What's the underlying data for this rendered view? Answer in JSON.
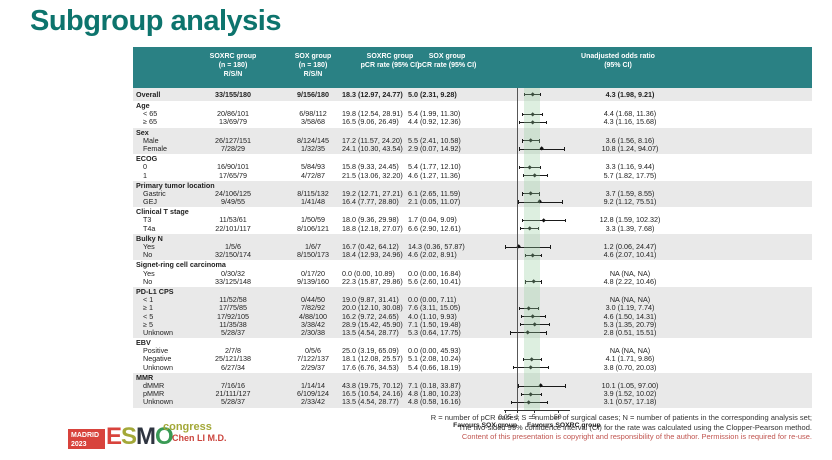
{
  "title": "Subgroup analysis",
  "table": {
    "columns": {
      "soxrc_rsn": [
        "SOXRC group",
        "(n = 180)",
        "R/S/N"
      ],
      "sox_rsn": [
        "SOX group",
        "(n = 180)",
        "R/S/N"
      ],
      "soxrc_pcr": [
        "SOXRC group",
        "pCR rate (95% CI)"
      ],
      "sox_pcr": [
        "SOX group",
        "pCR rate (95% CI)"
      ],
      "odds_ratio": [
        "Unadjusted odds ratio",
        "(95% CI)"
      ]
    }
  },
  "chart_data": {
    "type": "forest",
    "x_axis": {
      "scale": "log",
      "ticks": [
        0.05,
        1,
        5,
        50
      ],
      "tick_labels": [
        "0.05",
        "1",
        "5",
        "50"
      ],
      "ref_line": 1,
      "shaded_band": [
        1.98,
        9.21
      ],
      "favours_left": "Favours SOX group",
      "favours_right": "Favours SOXRC group"
    },
    "sections": [
      {
        "header": null,
        "shaded": true,
        "rows": [
          {
            "label": "Overall",
            "bold": true,
            "soxrc_rsn": "33/155/180",
            "sox_rsn": "9/156/180",
            "soxrc_pcr": "18.3 (12.97, 24.77)",
            "sox_pcr": "5.0 (2.31, 9.28)",
            "or_text": "4.3 (1.98, 9.21)",
            "or": 4.3,
            "lo": 1.98,
            "hi": 9.21
          }
        ]
      },
      {
        "header": "Age",
        "shaded": false,
        "rows": [
          {
            "label": "< 65",
            "soxrc_rsn": "20/86/101",
            "sox_rsn": "6/98/112",
            "soxrc_pcr": "19.8 (12.54, 28.91)",
            "sox_pcr": "5.4 (1.99, 11.30)",
            "or_text": "4.4 (1.68, 11.36)",
            "or": 4.4,
            "lo": 1.68,
            "hi": 11.36
          },
          {
            "label": "≥ 65",
            "soxrc_rsn": "13/69/79",
            "sox_rsn": "3/58/68",
            "soxrc_pcr": "16.5 (9.06, 26.49)",
            "sox_pcr": "4.4 (0.92, 12.36)",
            "or_text": "4.3 (1.16, 15.68)",
            "or": 4.3,
            "lo": 1.16,
            "hi": 15.68
          }
        ]
      },
      {
        "header": "Sex",
        "shaded": true,
        "rows": [
          {
            "label": "Male",
            "soxrc_rsn": "26/127/151",
            "sox_rsn": "8/124/145",
            "soxrc_pcr": "17.2 (11.57, 24.20)",
            "sox_pcr": "5.5 (2.41, 10.58)",
            "or_text": "3.6 (1.56, 8.16)",
            "or": 3.6,
            "lo": 1.56,
            "hi": 8.16
          },
          {
            "label": "Female",
            "soxrc_rsn": "7/28/29",
            "sox_rsn": "1/32/35",
            "soxrc_pcr": "24.1 (10.30, 43.54)",
            "sox_pcr": "2.9 (0.07, 14.92)",
            "or_text": "10.8 (1.24, 94.07)",
            "or": 10.8,
            "lo": 1.24,
            "hi": 94.07
          }
        ]
      },
      {
        "header": "ECOG",
        "shaded": false,
        "rows": [
          {
            "label": "0",
            "soxrc_rsn": "16/90/101",
            "sox_rsn": "5/84/93",
            "soxrc_pcr": "15.8 (9.33, 24.45)",
            "sox_pcr": "5.4 (1.77, 12.10)",
            "or_text": "3.3 (1.16, 9.44)",
            "or": 3.3,
            "lo": 1.16,
            "hi": 9.44
          },
          {
            "label": "1",
            "soxrc_rsn": "17/65/79",
            "sox_rsn": "4/72/87",
            "soxrc_pcr": "21.5 (13.06, 32.20)",
            "sox_pcr": "4.6 (1.27, 11.36)",
            "or_text": "5.7 (1.82, 17.75)",
            "or": 5.7,
            "lo": 1.82,
            "hi": 17.75
          }
        ]
      },
      {
        "header": "Primary tumor location",
        "shaded": true,
        "rows": [
          {
            "label": "Gastric",
            "soxrc_rsn": "24/106/125",
            "sox_rsn": "8/115/132",
            "soxrc_pcr": "19.2 (12.71, 27.21)",
            "sox_pcr": "6.1 (2.65, 11.59)",
            "or_text": "3.7 (1.59, 8.55)",
            "or": 3.7,
            "lo": 1.59,
            "hi": 8.55
          },
          {
            "label": "GEJ",
            "soxrc_rsn": "9/49/55",
            "sox_rsn": "1/41/48",
            "soxrc_pcr": "16.4 (7.77, 28.80)",
            "sox_pcr": "2.1 (0.05, 11.07)",
            "or_text": "9.2 (1.12, 75.51)",
            "or": 9.2,
            "lo": 1.12,
            "hi": 75.51
          }
        ]
      },
      {
        "header": "Clinical T stage",
        "shaded": false,
        "rows": [
          {
            "label": "T3",
            "soxrc_rsn": "11/53/61",
            "sox_rsn": "1/50/59",
            "soxrc_pcr": "18.0 (9.36, 29.98)",
            "sox_pcr": "1.7 (0.04, 9.09)",
            "or_text": "12.8 (1.59, 102.32)",
            "or": 12.8,
            "lo": 1.59,
            "hi": 102.32
          },
          {
            "label": "T4a",
            "soxrc_rsn": "22/101/117",
            "sox_rsn": "8/106/121",
            "soxrc_pcr": "18.8 (12.18, 27.07)",
            "sox_pcr": "6.6 (2.90, 12.61)",
            "or_text": "3.3 (1.39, 7.68)",
            "or": 3.3,
            "lo": 1.39,
            "hi": 7.68
          }
        ]
      },
      {
        "header": "Bulky N",
        "shaded": true,
        "rows": [
          {
            "label": "Yes",
            "soxrc_rsn": "1/5/6",
            "sox_rsn": "1/6/7",
            "soxrc_pcr": "16.7 (0.42, 64.12)",
            "sox_pcr": "14.3 (0.36, 57.87)",
            "or_text": "1.2 (0.06, 24.47)",
            "or": 1.2,
            "lo": 0.06,
            "hi": 24.47
          },
          {
            "label": "No",
            "soxrc_rsn": "32/150/174",
            "sox_rsn": "8/150/173",
            "soxrc_pcr": "18.4 (12.93, 24.96)",
            "sox_pcr": "4.6 (2.02, 8.91)",
            "or_text": "4.6 (2.07, 10.41)",
            "or": 4.6,
            "lo": 2.07,
            "hi": 10.41
          }
        ]
      },
      {
        "header": "Signet-ring cell carcinoma",
        "shaded": false,
        "rows": [
          {
            "label": "Yes",
            "soxrc_rsn": "0/30/32",
            "sox_rsn": "0/17/20",
            "soxrc_pcr": "0.0 (0.00, 10.89)",
            "sox_pcr": "0.0 (0.00, 16.84)",
            "or_text": "NA (NA, NA)",
            "or": null,
            "lo": null,
            "hi": null
          },
          {
            "label": "No",
            "soxrc_rsn": "33/125/148",
            "sox_rsn": "9/139/160",
            "soxrc_pcr": "22.3 (15.87, 29.86)",
            "sox_pcr": "5.6 (2.60, 10.41)",
            "or_text": "4.8 (2.22, 10.46)",
            "or": 4.8,
            "lo": 2.22,
            "hi": 10.46
          }
        ]
      },
      {
        "header": "PD-L1 CPS",
        "shaded": true,
        "rows": [
          {
            "label": "< 1",
            "soxrc_rsn": "11/52/58",
            "sox_rsn": "0/44/50",
            "soxrc_pcr": "19.0 (9.87, 31.41)",
            "sox_pcr": "0.0 (0.00, 7.11)",
            "or_text": "NA (NA, NA)",
            "or": null,
            "lo": null,
            "hi": null
          },
          {
            "label": "≥ 1",
            "soxrc_rsn": "17/75/85",
            "sox_rsn": "7/82/92",
            "soxrc_pcr": "20.0 (12.10, 30.08)",
            "sox_pcr": "7.6 (3.11, 15.05)",
            "or_text": "3.0 (1.19, 7.74)",
            "or": 3.0,
            "lo": 1.19,
            "hi": 7.74
          },
          {
            "label": "< 5",
            "soxrc_rsn": "17/92/105",
            "sox_rsn": "4/88/100",
            "soxrc_pcr": "16.2 (9.72, 24.65)",
            "sox_pcr": "4.0 (1.10, 9.93)",
            "or_text": "4.6 (1.50, 14.31)",
            "or": 4.6,
            "lo": 1.5,
            "hi": 14.31
          },
          {
            "label": "≥ 5",
            "soxrc_rsn": "11/35/38",
            "sox_rsn": "3/38/42",
            "soxrc_pcr": "28.9 (15.42, 45.90)",
            "sox_pcr": "7.1 (1.50, 19.48)",
            "or_text": "5.3 (1.35, 20.79)",
            "or": 5.3,
            "lo": 1.35,
            "hi": 20.79
          },
          {
            "label": "Unknown",
            "soxrc_rsn": "5/28/37",
            "sox_rsn": "2/30/38",
            "soxrc_pcr": "13.5 (4.54, 28.77)",
            "sox_pcr": "5.3 (0.64, 17.75)",
            "or_text": "2.8 (0.51, 15.51)",
            "or": 2.8,
            "lo": 0.51,
            "hi": 15.51
          }
        ]
      },
      {
        "header": "EBV",
        "shaded": false,
        "rows": [
          {
            "label": "Positive",
            "soxrc_rsn": "2/7/8",
            "sox_rsn": "0/5/6",
            "soxrc_pcr": "25.0 (3.19, 65.09)",
            "sox_pcr": "0.0 (0.00, 45.93)",
            "or_text": "NA (NA, NA)",
            "or": null,
            "lo": null,
            "hi": null
          },
          {
            "label": "Negative",
            "soxrc_rsn": "25/121/138",
            "sox_rsn": "7/122/137",
            "soxrc_pcr": "18.1 (12.08, 25.57)",
            "sox_pcr": "5.1 (2.08, 10.24)",
            "or_text": "4.1 (1.71, 9.86)",
            "or": 4.1,
            "lo": 1.71,
            "hi": 9.86
          },
          {
            "label": "Unknown",
            "soxrc_rsn": "6/27/34",
            "sox_rsn": "2/29/37",
            "soxrc_pcr": "17.6 (6.76, 34.53)",
            "sox_pcr": "5.4 (0.66, 18.19)",
            "or_text": "3.8 (0.70, 20.03)",
            "or": 3.8,
            "lo": 0.7,
            "hi": 20.03
          }
        ]
      },
      {
        "header": "MMR",
        "shaded": true,
        "rows": [
          {
            "label": "dMMR",
            "soxrc_rsn": "7/16/16",
            "sox_rsn": "1/14/14",
            "soxrc_pcr": "43.8 (19.75, 70.12)",
            "sox_pcr": "7.1 (0.18, 33.87)",
            "or_text": "10.1 (1.05, 97.00)",
            "or": 10.1,
            "lo": 1.05,
            "hi": 97.0
          },
          {
            "label": "pMMR",
            "soxrc_rsn": "21/111/127",
            "sox_rsn": "6/109/124",
            "soxrc_pcr": "16.5 (10.54, 24.16)",
            "sox_pcr": "4.8 (1.80, 10.23)",
            "or_text": "3.9 (1.52, 10.02)",
            "or": 3.9,
            "lo": 1.52,
            "hi": 10.02
          },
          {
            "label": "Unknown",
            "soxrc_rsn": "5/28/37",
            "sox_rsn": "2/33/42",
            "soxrc_pcr": "13.5 (4.54, 28.77)",
            "sox_pcr": "4.8 (0.58, 16.16)",
            "or_text": "3.1 (0.57, 17.18)",
            "or": 3.1,
            "lo": 0.57,
            "hi": 17.18
          }
        ]
      }
    ]
  },
  "footnotes": [
    "R = number of pCR cases; S = number of surgical cases; N = number of patients in the corresponding analysis set;",
    "The two-sided 95% confidence interval (CI) for the rate was calculated using the Clopper-Pearson method.",
    "Content of this presentation is copyright and responsibility of the author. Permission is required for re-use."
  ],
  "footer": {
    "presenter": "Chen LI M.D.",
    "logo": {
      "city": "MADRID",
      "year": "2023",
      "org_letters": [
        "E",
        "S",
        "M",
        "O"
      ],
      "suffix": "congress"
    }
  },
  "colors": {
    "title_teal": "#0d746d",
    "header_teal": "#2a8184",
    "row_shade": "#e9e9e9",
    "band_green": "#96cda0",
    "accent_red": "#d8433c",
    "footnote_red": "#c05550"
  }
}
